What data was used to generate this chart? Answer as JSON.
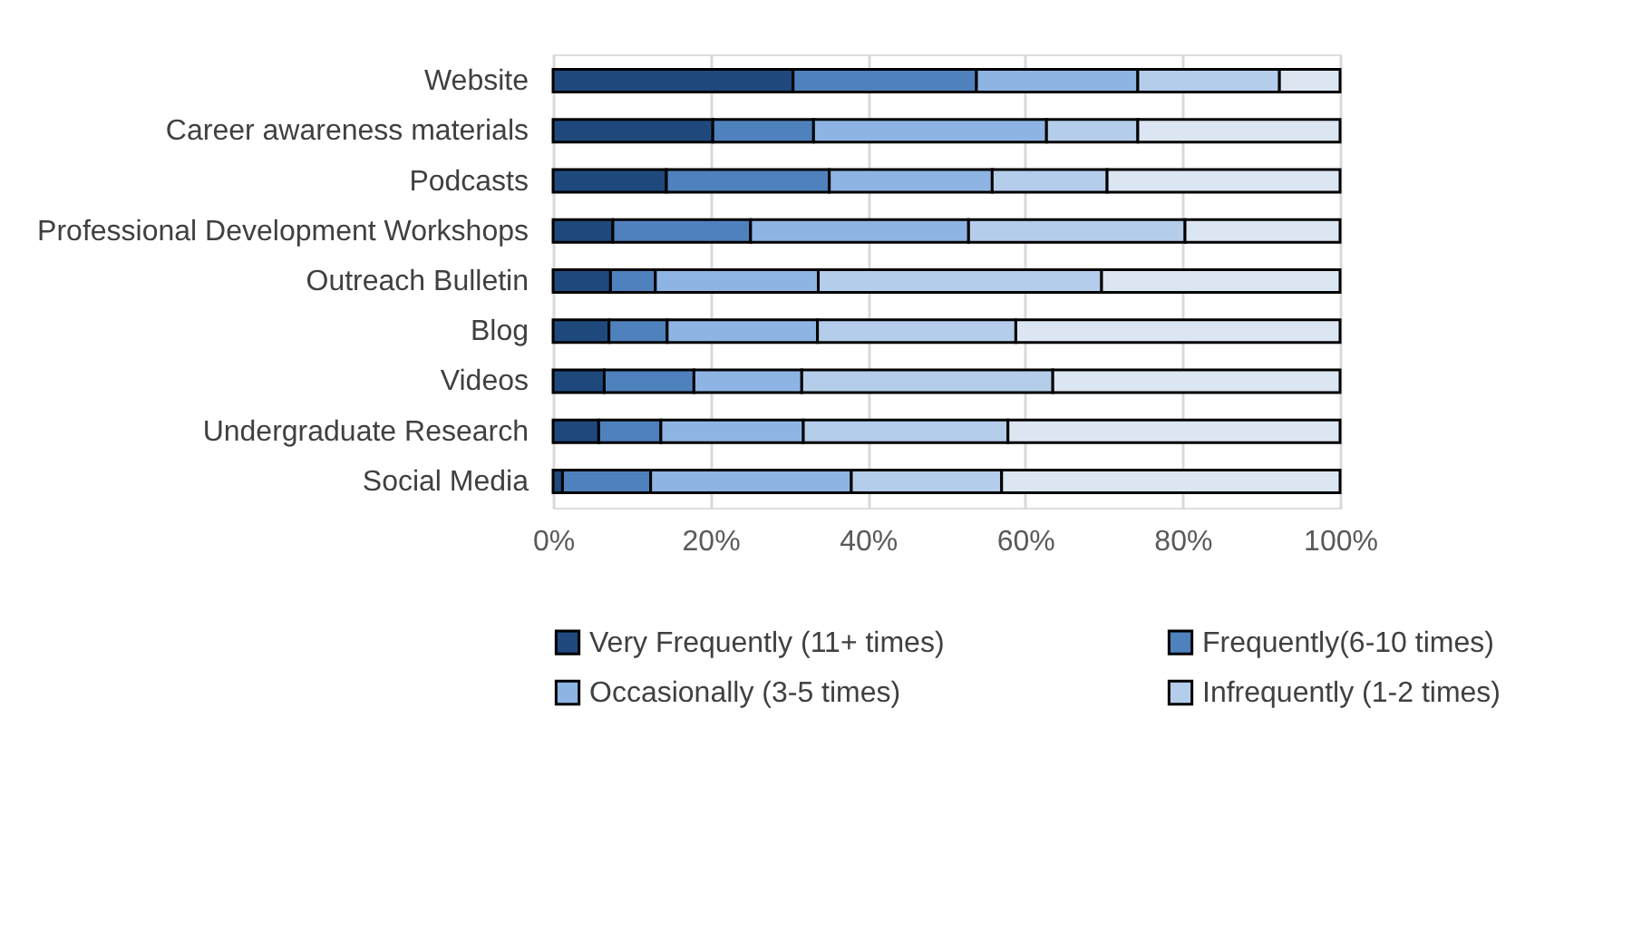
{
  "chart_data": {
    "type": "bar",
    "orientation": "horizontal",
    "stacked": true,
    "categories": [
      "Website",
      "Career awareness materials",
      "Podcasts",
      "Professional Development Workshops",
      "Outreach Bulletin",
      "Blog",
      "Videos",
      "Undergraduate Research",
      "Social Media"
    ],
    "series": [
      {
        "name": "Very Frequently (11+ times)",
        "color": "#1f497d",
        "values": [
          30.5,
          20.3,
          14.4,
          7.6,
          7.3,
          7.1,
          6.5,
          5.8,
          1.2
        ]
      },
      {
        "name": "Frequently(6-10 times)",
        "color": "#4f81bd",
        "values": [
          23.3,
          12.8,
          20.7,
          17.5,
          5.7,
          7.4,
          11.4,
          7.9,
          11.2
        ]
      },
      {
        "name": "Occasionally (3-5 times)",
        "color": "#8eb4e3",
        "values": [
          20.5,
          29.6,
          20.7,
          27.7,
          20.7,
          19.1,
          13.7,
          18.1,
          25.5
        ]
      },
      {
        "name": "Infrequently (1-2 times)",
        "color": "#b4cdea",
        "values": [
          18.0,
          11.6,
          14.6,
          27.5,
          36.0,
          25.2,
          31.9,
          26.0,
          19.1
        ]
      },
      {
        "color": "#dce6f2",
        "values": [
          7.7,
          25.7,
          29.6,
          19.7,
          30.3,
          41.2,
          36.5,
          42.2,
          43.0
        ]
      }
    ],
    "xlim": [
      0,
      100
    ],
    "xticks": [
      {
        "value": 0,
        "label": "0%"
      },
      {
        "value": 20,
        "label": "20%"
      },
      {
        "value": 40,
        "label": "40%"
      },
      {
        "value": 60,
        "label": "60%"
      },
      {
        "value": 80,
        "label": "80%"
      },
      {
        "value": 100,
        "label": "100%"
      }
    ],
    "grid": "x",
    "legend": "bottom"
  }
}
